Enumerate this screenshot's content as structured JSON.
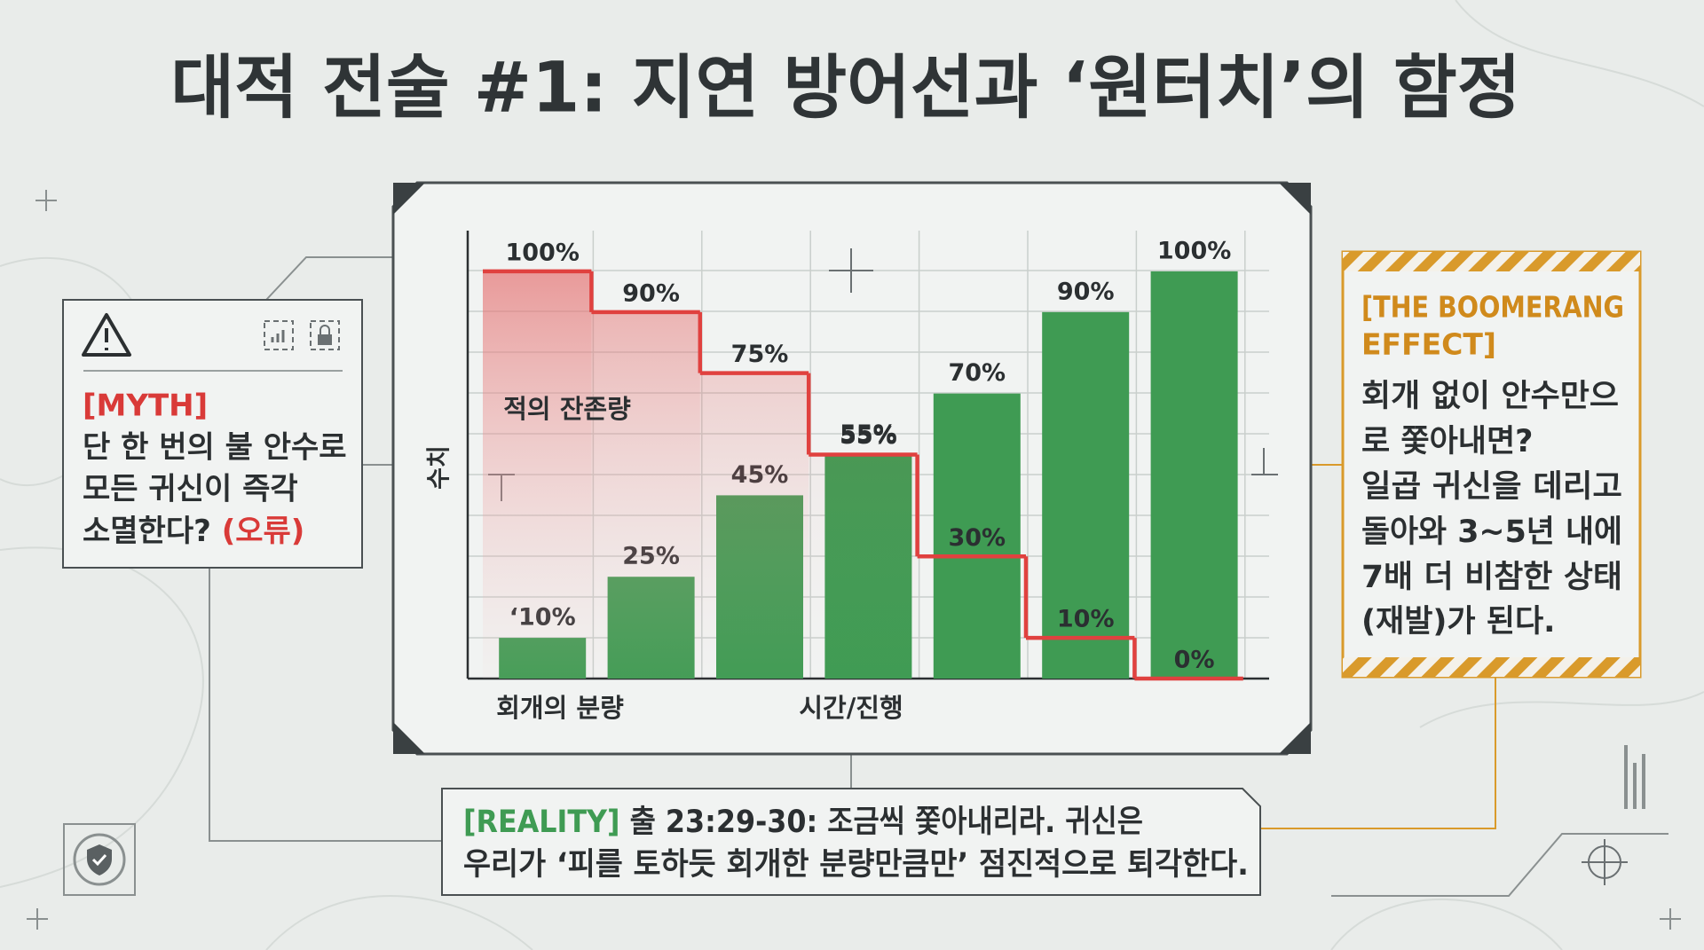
{
  "title": "대적 전술 #1: 지연 방어선과 ‘원터치’의 함정",
  "myth": {
    "tag": "[MYTH]",
    "lines": [
      "단 한 번의 불 안수로",
      "모든 귀신이 즉각",
      "소멸한다?"
    ],
    "error": "(오류)"
  },
  "boomerang": {
    "tag_lines": [
      "[THE BOOMERANG",
      "EFFECT]"
    ],
    "lines": [
      "회개 없이 안수만으",
      "로 쫓아내면?",
      "일곱 귀신을 데리고",
      "돌아와 3~5년 내에",
      "7배 더 비참한 상태",
      "(재발)가 된다."
    ]
  },
  "reality": {
    "tag": "[REALITY]",
    "lines": [
      "출 23:29-30: 조금씩 쫓아내리라. 귀신은",
      "우리가 ‘피를 토하듯 회개한 분량만큼만’ 점진적으로 퇴각한다."
    ]
  },
  "chart_data": {
    "type": "bar",
    "ylabel": "수치",
    "xlabel": "시간/진행",
    "categories": [
      null,
      null,
      null,
      null,
      null,
      null,
      null
    ],
    "ylim": [
      0,
      110
    ],
    "series": [
      {
        "name": "회개의 분량",
        "type": "bar",
        "color": "#3f9b53",
        "values": [
          10,
          25,
          45,
          55,
          70,
          90,
          100
        ],
        "value_labels": [
          "‘10%",
          "25%",
          "45%",
          "55%",
          "70%",
          "90%",
          "100%"
        ]
      },
      {
        "name": "적의 잔존량",
        "type": "step",
        "color": "#e0413f",
        "values": [
          100,
          90,
          75,
          55,
          30,
          10,
          0
        ],
        "value_labels": [
          "100%",
          "90%",
          "75%",
          "55%",
          "30%",
          "10%",
          "0%"
        ]
      }
    ]
  }
}
